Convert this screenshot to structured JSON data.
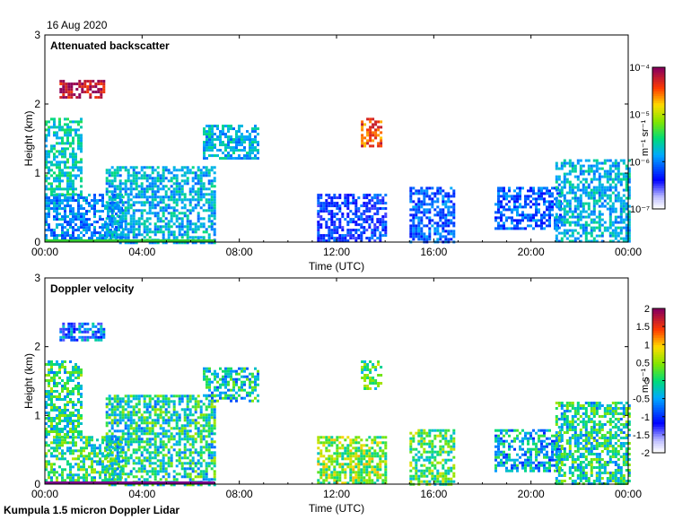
{
  "date_label": "16 Aug 2020",
  "footer": "Kumpula 1.5 micron Doppler Lidar",
  "chart_data": [
    {
      "type": "heatmap",
      "title": "Attenuated backscatter",
      "xlabel": "Time (UTC)",
      "ylabel": "Height (km)",
      "xticks": [
        "00:00",
        "04:00",
        "08:00",
        "12:00",
        "16:00",
        "20:00",
        "00:00"
      ],
      "yticks": [
        "0",
        "1",
        "2",
        "3"
      ],
      "ylim": [
        0,
        3
      ],
      "xlim_hours": [
        0,
        24
      ],
      "colorbar": {
        "scale": "log",
        "unit": "m⁻¹ sr⁻¹",
        "ticks": [
          "10⁻⁷",
          "10⁻⁶",
          "10⁻⁵",
          "10⁻⁴"
        ],
        "range": [
          1e-07,
          0.0001
        ]
      },
      "features": [
        {
          "t0": 0.0,
          "t1": 3.2,
          "h0": 0.0,
          "h1": 0.7,
          "level": 0.35
        },
        {
          "t0": 2.5,
          "t1": 7.0,
          "h0": 0.0,
          "h1": 1.1,
          "level": 0.4
        },
        {
          "t0": 0.0,
          "t1": 1.5,
          "h0": 0.7,
          "h1": 1.8,
          "level": 0.45
        },
        {
          "t0": 0.6,
          "t1": 2.4,
          "h0": 2.1,
          "h1": 2.35,
          "level": 0.95
        },
        {
          "t0": 6.5,
          "t1": 8.8,
          "h0": 1.2,
          "h1": 1.7,
          "level": 0.4
        },
        {
          "t0": 11.2,
          "t1": 14.0,
          "h0": 0.0,
          "h1": 0.7,
          "level": 0.25
        },
        {
          "t0": 13.0,
          "t1": 13.8,
          "h0": 1.4,
          "h1": 1.8,
          "level": 0.85
        },
        {
          "t0": 15.0,
          "t1": 16.8,
          "h0": 0.0,
          "h1": 0.8,
          "level": 0.3
        },
        {
          "t0": 18.5,
          "t1": 21.2,
          "h0": 0.2,
          "h1": 0.8,
          "level": 0.3
        },
        {
          "t0": 21.0,
          "t1": 24.0,
          "h0": 0.0,
          "h1": 1.2,
          "level": 0.4
        }
      ]
    },
    {
      "type": "heatmap",
      "title": "Doppler velocity",
      "xlabel": "Time (UTC)",
      "ylabel": "Height (km)",
      "xticks": [
        "00:00",
        "04:00",
        "08:00",
        "12:00",
        "16:00",
        "20:00",
        "00:00"
      ],
      "yticks": [
        "0",
        "1",
        "2",
        "3"
      ],
      "ylim": [
        0,
        3
      ],
      "xlim_hours": [
        0,
        24
      ],
      "colorbar": {
        "scale": "linear",
        "unit": "m s⁻¹",
        "ticks": [
          "-2",
          "-1.5",
          "-1",
          "-0.5",
          "0",
          "0.5",
          "1",
          "1.5",
          "2"
        ],
        "range": [
          -2,
          2
        ]
      },
      "features": [
        {
          "t0": 0.0,
          "t1": 3.2,
          "h0": 0.0,
          "h1": 0.7,
          "level": 0.5
        },
        {
          "t0": 2.5,
          "t1": 7.0,
          "h0": 0.0,
          "h1": 1.3,
          "level": 0.48
        },
        {
          "t0": 0.0,
          "t1": 1.5,
          "h0": 0.7,
          "h1": 1.8,
          "level": 0.5
        },
        {
          "t0": 0.6,
          "t1": 2.4,
          "h0": 2.1,
          "h1": 2.35,
          "level": 0.3
        },
        {
          "t0": 6.5,
          "t1": 8.8,
          "h0": 1.2,
          "h1": 1.7,
          "level": 0.45
        },
        {
          "t0": 11.2,
          "t1": 14.0,
          "h0": 0.0,
          "h1": 0.7,
          "level": 0.6
        },
        {
          "t0": 13.0,
          "t1": 13.8,
          "h0": 1.4,
          "h1": 1.8,
          "level": 0.55
        },
        {
          "t0": 15.0,
          "t1": 16.8,
          "h0": 0.0,
          "h1": 0.8,
          "level": 0.55
        },
        {
          "t0": 18.5,
          "t1": 21.2,
          "h0": 0.2,
          "h1": 0.8,
          "level": 0.4
        },
        {
          "t0": 21.0,
          "t1": 24.0,
          "h0": 0.0,
          "h1": 1.2,
          "level": 0.48
        }
      ]
    }
  ]
}
